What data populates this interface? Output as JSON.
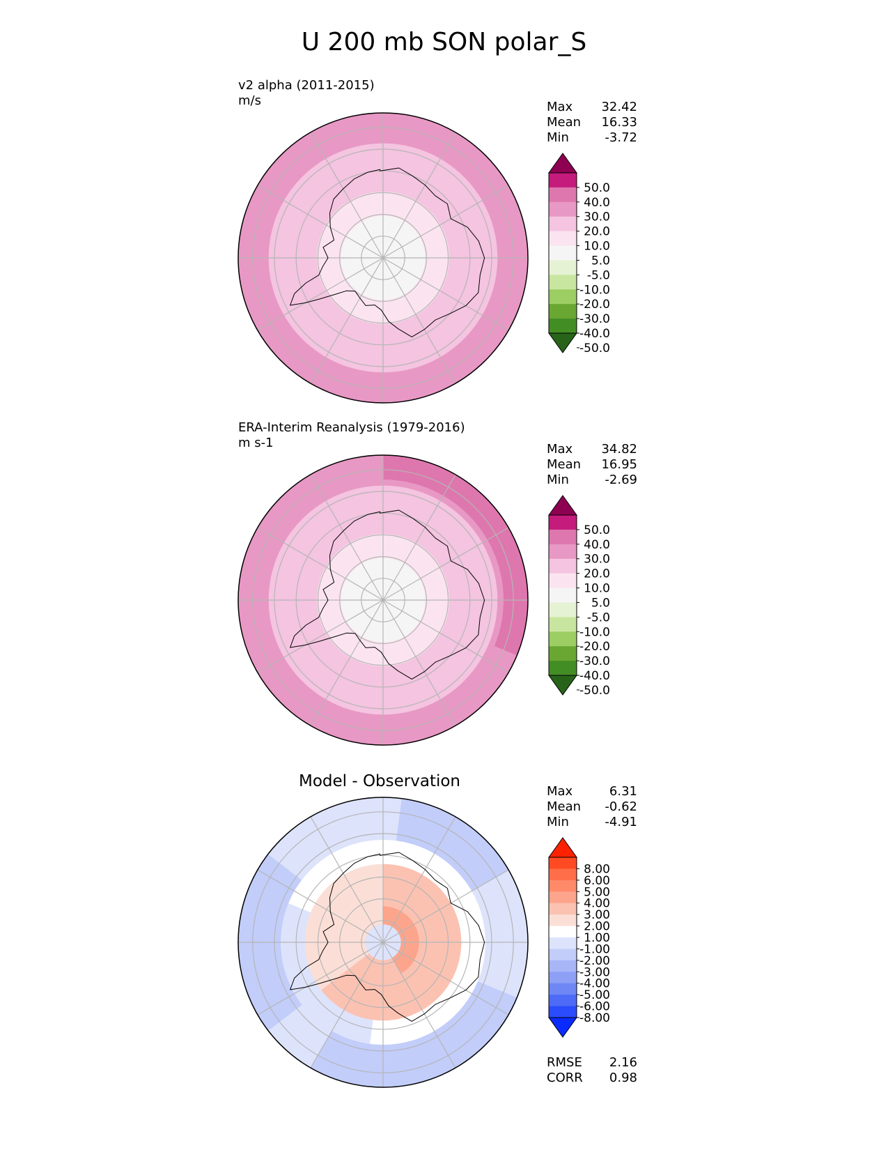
{
  "page": {
    "title": "U 200 mb SON polar_S"
  },
  "panels": [
    {
      "name": "test",
      "title_line1": "v2 alpha (2011-2015)",
      "title_line2": "m/s",
      "stats": {
        "max_label": "Max",
        "max": "32.42",
        "mean_label": "Mean",
        "mean": "16.33",
        "min_label": "Min",
        "min": "-3.72"
      },
      "colorbar": {
        "labels": [
          "50.0",
          "40.0",
          "30.0",
          "20.0",
          "10.0",
          "5.0",
          "-5.0",
          "-10.0",
          "-20.0",
          "-30.0",
          "-40.0",
          "-50.0"
        ],
        "colors": [
          "#8e0152",
          "#c51b7d",
          "#de77ae",
          "#e898c4",
          "#f4c4e0",
          "#fbe4f0",
          "#f5f5f5",
          "#e6f2d4",
          "#c9e6a0",
          "#9cce64",
          "#6aa632",
          "#438d25",
          "#276419"
        ]
      },
      "field": {
        "type": "zonal_wind_bands",
        "ring_values": [
          3,
          8,
          14,
          19,
          24
        ],
        "sector_boost_value": 28
      }
    },
    {
      "name": "reference",
      "title_line1": "ERA-Interim Reanalysis (1979-2016)",
      "title_line2": "m s-1",
      "stats": {
        "max_label": "Max",
        "max": "34.82",
        "mean_label": "Mean",
        "mean": "16.95",
        "min_label": "Min",
        "min": "-2.69"
      },
      "colorbar": {
        "labels": [
          "50.0",
          "40.0",
          "30.0",
          "20.0",
          "10.0",
          "5.0",
          "-5.0",
          "-10.0",
          "-20.0",
          "-30.0",
          "-40.0",
          "-50.0"
        ],
        "colors": [
          "#8e0152",
          "#c51b7d",
          "#de77ae",
          "#e898c4",
          "#f4c4e0",
          "#fbe4f0",
          "#f5f5f5",
          "#e6f2d4",
          "#c9e6a0",
          "#9cce64",
          "#6aa632",
          "#438d25",
          "#276419"
        ]
      },
      "field": {
        "type": "zonal_wind_bands",
        "ring_values": [
          3,
          7,
          13,
          19,
          25
        ],
        "sector_boost_value": 33
      }
    },
    {
      "name": "difference",
      "title_line1": "Model - Observation",
      "stats": {
        "max_label": "Max",
        "max": "6.31",
        "mean_label": "Mean",
        "mean": "-0.62",
        "min_label": "Min",
        "min": "-4.91"
      },
      "colorbar": {
        "labels": [
          "8.00",
          "6.00",
          "5.00",
          "4.00",
          "3.00",
          "2.00",
          "1.00",
          "-1.00",
          "-2.00",
          "-3.00",
          "-4.00",
          "-5.00",
          "-6.00",
          "-8.00"
        ],
        "colors": [
          "#ff2200",
          "#ff4a22",
          "#ff6e48",
          "#ff8a6a",
          "#fca58c",
          "#fbc2b2",
          "#fbdfd6",
          "#ffffff",
          "#dde3fb",
          "#c2cdfa",
          "#a8b6f8",
          "#8da0f6",
          "#6f87f5",
          "#4d6bf6",
          "#2b4cfc",
          "#0a2bff"
        ]
      },
      "metrics": {
        "rmse_label": "RMSE",
        "rmse": "2.16",
        "corr_label": "CORR",
        "corr": "0.98"
      },
      "field": {
        "type": "difference_pattern",
        "positive_lobe_value": 3.5,
        "negative_ring_value": -3,
        "center_value": -1.5
      }
    }
  ],
  "chart_data": [
    {
      "type": "heatmap",
      "projection": "south polar stereographic",
      "title": "v2 alpha (2011-2015)",
      "units": "m/s",
      "variable": "U 200 mb SON",
      "levels": [
        -50,
        -40,
        -30,
        -20,
        -10,
        -5,
        5,
        10,
        20,
        30,
        40,
        50
      ],
      "extend": "both",
      "max": 32.42,
      "mean": 16.33,
      "min": -3.72
    },
    {
      "type": "heatmap",
      "projection": "south polar stereographic",
      "title": "ERA-Interim Reanalysis (1979-2016)",
      "units": "m s-1",
      "variable": "U 200 mb SON",
      "levels": [
        -50,
        -40,
        -30,
        -20,
        -10,
        -5,
        5,
        10,
        20,
        30,
        40,
        50
      ],
      "extend": "both",
      "max": 34.82,
      "mean": 16.95,
      "min": -2.69
    },
    {
      "type": "heatmap",
      "projection": "south polar stereographic",
      "title": "Model - Observation",
      "levels": [
        -8,
        -6,
        -5,
        -4,
        -3,
        -2,
        -1,
        1,
        2,
        3,
        4,
        5,
        6,
        8
      ],
      "extend": "both",
      "max": 6.31,
      "mean": -0.62,
      "min": -4.91,
      "rmse": 2.16,
      "corr": 0.98
    }
  ]
}
